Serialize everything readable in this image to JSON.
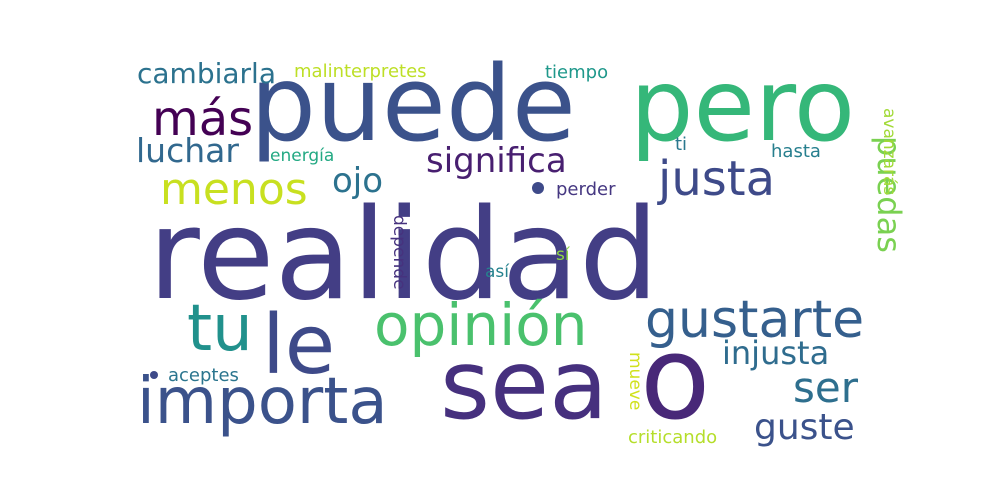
{
  "words": [
    {
      "text": "realidad",
      "color": "#433e85"
    },
    {
      "text": "puede",
      "color": "#3b528b"
    },
    {
      "text": "pero",
      "color": "#35b779"
    },
    {
      "text": "sea",
      "color": "#46307e"
    },
    {
      "text": "o",
      "color": "#482878"
    },
    {
      "text": "importa",
      "color": "#3b528b"
    },
    {
      "text": "opinión",
      "color": "#4ac16d"
    },
    {
      "text": "tu",
      "color": "#21918c"
    },
    {
      "text": "le",
      "color": "#3e4a89"
    },
    {
      "text": "gustarte",
      "color": "#355f8d"
    },
    {
      "text": "justa",
      "color": "#3e4a89"
    },
    {
      "text": "más",
      "color": "#440154"
    },
    {
      "text": "menos",
      "color": "#c8e020"
    },
    {
      "text": "significa",
      "color": "#481f70"
    },
    {
      "text": "ojo",
      "color": "#2c728e"
    },
    {
      "text": "luchar",
      "color": "#31688e"
    },
    {
      "text": "cambiarla",
      "color": "#2c728e"
    },
    {
      "text": "injusta",
      "color": "#2f6c8e"
    },
    {
      "text": "ser",
      "color": "#2e6f8e"
    },
    {
      "text": "guste",
      "color": "#3b528b"
    },
    {
      "text": "puedas",
      "color": "#7ad151"
    },
    {
      "text": "malinterpretes",
      "color": "#bddf26"
    },
    {
      "text": "tiempo",
      "color": "#1f988b"
    },
    {
      "text": "energía",
      "color": "#23a983"
    },
    {
      "text": "ti",
      "color": "#2a788e"
    },
    {
      "text": "hasta",
      "color": "#277f8e"
    },
    {
      "text": "avanzarás",
      "color": "#a2da37"
    },
    {
      "text": "perder",
      "color": "#453781"
    },
    {
      "text": "depende",
      "color": "#46327e"
    },
    {
      "text": "sí",
      "color": "#8fd744"
    },
    {
      "text": "así",
      "color": "#26828e"
    },
    {
      "text": "aceptes",
      "color": "#2b758e"
    },
    {
      "text": "mueve",
      "color": "#d0e11c"
    },
    {
      "text": "criticando",
      "color": "#b5de2b"
    }
  ],
  "dots": [
    {
      "color": "#3e4a89"
    },
    {
      "color": "#3e4a89"
    }
  ]
}
